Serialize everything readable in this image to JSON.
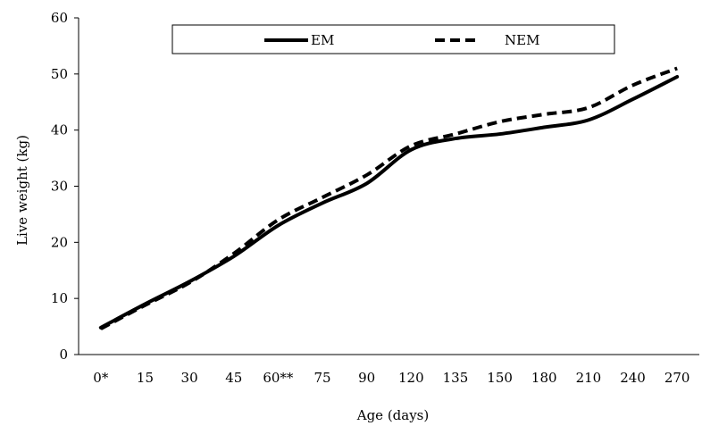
{
  "chart_data": {
    "type": "line",
    "title": "",
    "xlabel": "Age (days)",
    "ylabel": "Live weight (kg)",
    "categories": [
      "0*",
      "15",
      "30",
      "45",
      "60**",
      "75",
      "90",
      "120",
      "135",
      "150",
      "180",
      "210",
      "240",
      "270"
    ],
    "series": [
      {
        "name": "EM",
        "line_style": "solid",
        "color": "#000000",
        "values": [
          4.8,
          9.0,
          13.0,
          17.5,
          23.0,
          27.0,
          30.5,
          36.5,
          38.5,
          39.3,
          40.5,
          41.8,
          45.5,
          49.5
        ]
      },
      {
        "name": "NEM",
        "line_style": "dashed",
        "color": "#000000",
        "values": [
          4.6,
          8.8,
          12.8,
          18.0,
          24.0,
          28.0,
          32.0,
          37.2,
          39.3,
          41.5,
          42.8,
          44.0,
          48.0,
          51.0
        ]
      }
    ],
    "ylim": [
      0,
      60
    ],
    "yticks": [
      0,
      10,
      20,
      30,
      40,
      50,
      60
    ],
    "grid": false,
    "legend_position": "top-center"
  }
}
